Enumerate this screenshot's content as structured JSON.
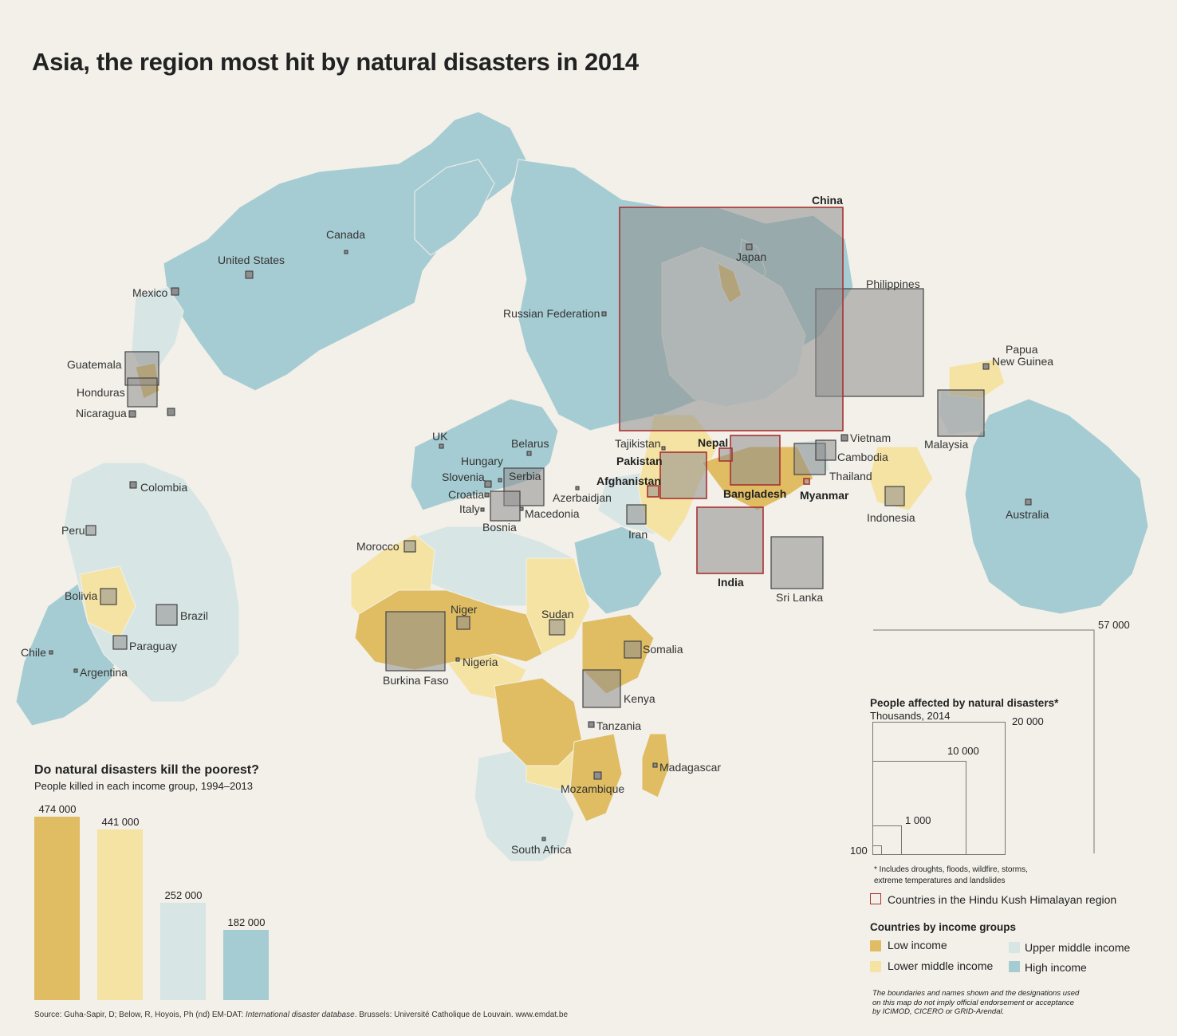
{
  "title": "Asia, the region most hit by natural disasters in 2014",
  "colors": {
    "low_income": "#e0bd63",
    "lower_middle_income": "#f5e3a3",
    "upper_middle_income": "#d7e6e5",
    "high_income": "#a6ccd3",
    "hkh_outline": "#a83232",
    "square_fill": "#9a9a9a"
  },
  "map_labels": {
    "china": "China",
    "japan": "Japan",
    "philippines": "Philippines",
    "papua": "Papua",
    "new_guinea": "New Guinea",
    "canada": "Canada",
    "united_states": "United States",
    "mexico": "Mexico",
    "russia": "Russian Federation",
    "guatemala": "Guatemala",
    "honduras": "Honduras",
    "nicaragua": "Nicaragua",
    "colombia": "Colombia",
    "peru": "Peru",
    "bolivia": "Bolivia",
    "brazil": "Brazil",
    "paraguay": "Paraguay",
    "chile": "Chile",
    "argentina": "Argentina",
    "uk": "UK",
    "belarus": "Belarus",
    "hungary": "Hungary",
    "slovenia": "Slovenia",
    "serbia": "Serbia",
    "croatia": "Croatia",
    "italy": "Italy",
    "macedonia": "Macedonia",
    "bosnia": "Bosnia",
    "azerbaidjan": "Azerbaidjan",
    "tajikistan": "Tajikistan",
    "nepal": "Nepal",
    "pakistan": "Pakistan",
    "afghanistan": "Afghanistan",
    "bangladesh": "Bangladesh",
    "myanmar": "Myanmar",
    "vietnam": "Vietnam",
    "cambodia": "Cambodia",
    "thailand": "Thailand",
    "malaysia": "Malaysia",
    "indonesia": "Indonesia",
    "australia": "Australia",
    "iran": "Iran",
    "india": "India",
    "sri_lanka": "Sri Lanka",
    "morocco": "Morocco",
    "niger": "Niger",
    "sudan": "Sudan",
    "somalia": "Somalia",
    "nigeria": "Nigeria",
    "burkina_faso": "Burkina Faso",
    "kenya": "Kenya",
    "tanzania": "Tanzania",
    "madagascar": "Madagascar",
    "mozambique": "Mozambique",
    "south_africa": "South Africa"
  },
  "bar_chart": {
    "title": "Do natural disasters kill the poorest?",
    "subtitle": "People killed in each  income group, 1994–2013",
    "bars": [
      {
        "label": "474 000",
        "value": 474000,
        "color": "#e0bd63"
      },
      {
        "label": "441 000",
        "value": 441000,
        "color": "#f5e3a3"
      },
      {
        "label": "252 000",
        "value": 252000,
        "color": "#d7e6e5"
      },
      {
        "label": "182 000",
        "value": 182000,
        "color": "#a6ccd3"
      }
    ]
  },
  "size_legend": {
    "title": "People affected by natural disasters*",
    "subtitle": "Thousands, 2014",
    "values": [
      "57 000",
      "20 000",
      "10 000",
      "1 000",
      "100"
    ],
    "note_line1": "* Includes droughts, floods, wildfire, storms,",
    "note_line2": "extreme temperatures and landslides",
    "hkh_label": "Countries in the Hindu Kush Himalayan region"
  },
  "income_legend": {
    "title": "Countries by income groups",
    "low": "Low income",
    "lower_middle": "Lower middle income",
    "upper_middle": "Upper middle income",
    "high": "High income"
  },
  "source": {
    "prefix": "Source: Guha-Sapir, D; Below, R, Hoyois, Ph (nd) EM-DAT: ",
    "italic": "International disaster database",
    "suffix": ". Brussels: Université Catholique de Louvain. www.emdat.be"
  },
  "disclaimer": "The boundaries and names shown and the designations used on this map do not imply official endorsement or acceptance by ICIMOD, CICERO or GRID-Arendal."
}
